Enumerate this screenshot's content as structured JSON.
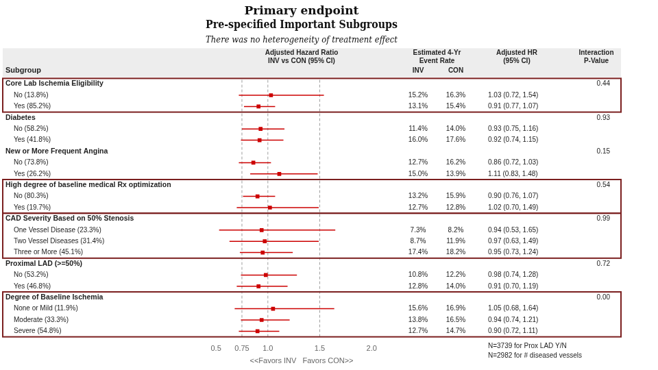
{
  "chart_data": {
    "type": "forest",
    "title": [
      "Primary endpoint",
      "Pre-specified Important Subgroups"
    ],
    "subtitle": "There was no heterogeneity of treatment effect",
    "footnotes": [
      "N=3739 for Prox LAD Y/N",
      "N=2982 for # diseased vessels"
    ],
    "header_labels": [
      "Subgroup",
      "Adjusted Hazard Ratio\nINV vs CON (95% CI)",
      "Estimated 4-Yr\nEvent Rate",
      "INV",
      "CON",
      "Adjusted HR\n(95% CI)",
      "Interaction\nP-Value"
    ],
    "x_label": "<<Favors INV   Favors CON>>",
    "xlim": [
      0.4,
      2.25
    ],
    "xticks": [
      0.5,
      0.75,
      {
        "value": 1,
        "label": "1.0"
      },
      1.5,
      {
        "value": 2,
        "label": "2.0"
      }
    ],
    "reference_lines": [
      0.75,
      1,
      1.5
    ],
    "grid": false,
    "color": "#CC0000",
    "groups": [
      {
        "name": "Core Lab Ischemia Eligibility",
        "p_value": "0.44",
        "color": "#7B1F1F",
        "categories": [
          "No (13.8%)",
          "Yes (85.2%)"
        ],
        "values": [
          1.03,
          0.91
        ],
        "ci_lo": [
          0.72,
          0.77
        ],
        "ci_hi": [
          1.54,
          1.07
        ],
        "value_labels": [
          "1.03 (0.72, 1.54)",
          "0.91 (0.77, 1.07)"
        ],
        "inv": [
          "15.2%",
          "13.1%"
        ],
        "con": [
          "16.3%",
          "15.4%"
        ]
      },
      {
        "name": "Diabetes",
        "p_value": "0.93",
        "categories": [
          "No (58.2%)",
          "Yes (41.8%)"
        ],
        "values": [
          0.93,
          0.92
        ],
        "ci_lo": [
          0.75,
          0.74
        ],
        "ci_hi": [
          1.16,
          1.15
        ],
        "value_labels": [
          "0.93 (0.75, 1.16)",
          "0.92 (0.74, 1.15)"
        ],
        "inv": [
          "11.4%",
          "16.0%"
        ],
        "con": [
          "14.0%",
          "17.6%"
        ]
      },
      {
        "name": "New or More Frequent Angina",
        "p_value": "0.15",
        "categories": [
          "No (73.8%)",
          "Yes (26.2%)"
        ],
        "values": [
          0.86,
          1.11
        ],
        "ci_lo": [
          0.72,
          0.83
        ],
        "ci_hi": [
          1.03,
          1.48
        ],
        "value_labels": [
          "0.86 (0.72, 1.03)",
          "1.11 (0.83, 1.48)"
        ],
        "inv": [
          "12.7%",
          "15.0%"
        ],
        "con": [
          "16.2%",
          "13.9%"
        ]
      },
      {
        "name": "High degree of baseline medical Rx optimization",
        "p_value": "0.54",
        "color": "#7B1F1F",
        "categories": [
          "No (80.3%)",
          "Yes (19.7%)"
        ],
        "values": [
          0.9,
          1.02
        ],
        "ci_lo": [
          0.76,
          0.7
        ],
        "ci_hi": [
          1.07,
          1.49
        ],
        "value_labels": [
          "0.90 (0.76, 1.07)",
          "1.02 (0.70, 1.49)"
        ],
        "inv": [
          "13.2%",
          "12.7%"
        ],
        "con": [
          "15.9%",
          "12.8%"
        ]
      },
      {
        "name": "CAD Severity Based on 50% Stenosis",
        "p_value": "0.99",
        "color": "#7B1F1F",
        "categories": [
          "One Vessel Disease (23.3%)",
          "Two Vessel Diseases (31.4%)",
          "Three or More (45.1%)"
        ],
        "values": [
          0.94,
          0.97,
          0.95
        ],
        "ci_lo": [
          0.53,
          0.63,
          0.73
        ],
        "ci_hi": [
          1.65,
          1.49,
          1.24
        ],
        "value_labels": [
          "0.94 (0.53, 1.65)",
          "0.97 (0.63, 1.49)",
          "0.95 (0.73, 1.24)"
        ],
        "inv": [
          "7.3%",
          "8.7%",
          "17.4%"
        ],
        "con": [
          "8.2%",
          "11.9%",
          "18.2%"
        ]
      },
      {
        "name": "Proximal LAD (>=50%)",
        "p_value": "0.72",
        "categories": [
          "No (53.2%)",
          "Yes (46.8%)"
        ],
        "values": [
          0.98,
          0.91
        ],
        "ci_lo": [
          0.74,
          0.7
        ],
        "ci_hi": [
          1.28,
          1.19
        ],
        "value_labels": [
          "0.98 (0.74, 1.28)",
          "0.91 (0.70, 1.19)"
        ],
        "inv": [
          "10.8%",
          "12.8%"
        ],
        "con": [
          "12.2%",
          "14.0%"
        ]
      },
      {
        "name": "Degree of Baseline Ischemia",
        "p_value": "0.00",
        "color": "#7B1F1F",
        "categories": [
          "None or Mild (11.9%)",
          "Moderate (33.3%)",
          "Severe (54.8%)"
        ],
        "values": [
          1.05,
          0.94,
          0.9
        ],
        "ci_lo": [
          0.68,
          0.74,
          0.72
        ],
        "ci_hi": [
          1.64,
          1.21,
          1.11
        ],
        "value_labels": [
          "1.05 (0.68, 1.64)",
          "0.94 (0.74, 1.21)",
          "0.90 (0.72, 1.11)"
        ],
        "inv": [
          "15.6%",
          "13.8%",
          "12.7%"
        ],
        "con": [
          "16.9%",
          "16.5%",
          "14.7%"
        ]
      }
    ]
  }
}
